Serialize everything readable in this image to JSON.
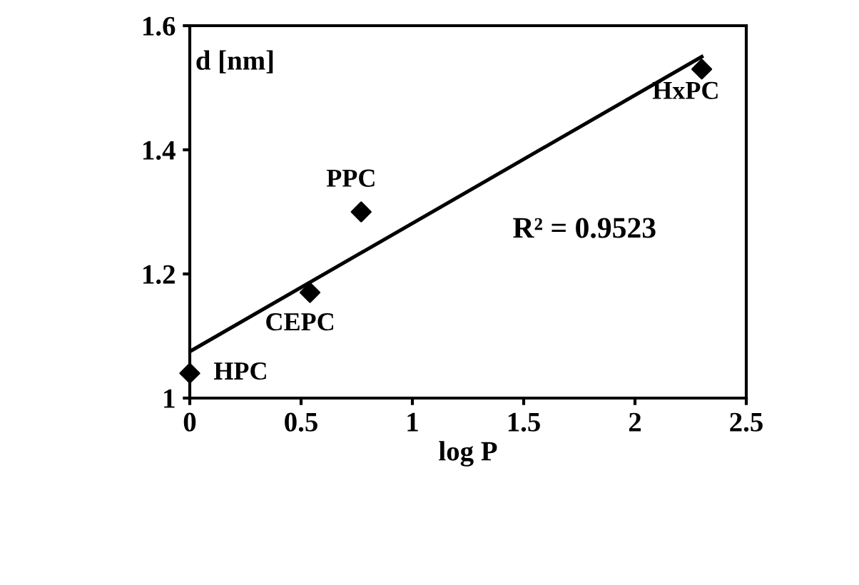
{
  "chart_data": {
    "type": "scatter",
    "xlabel": "log P",
    "ylabel": "d [nm]",
    "xlim": [
      0,
      2.5
    ],
    "xticks": [
      0,
      0.5,
      1,
      1.5,
      2,
      2.5
    ],
    "ylim": [
      1,
      1.6
    ],
    "yticks": [
      1,
      1.2,
      1.4,
      1.6
    ],
    "series": [
      {
        "x": [
          0,
          0.54,
          0.77,
          2.3
        ],
        "values": [
          1.04,
          1.17,
          1.3,
          1.53
        ],
        "color": "#000000",
        "marker": "diamond"
      },
      {
        "type": "line",
        "x": [
          0,
          2.3
        ],
        "values": [
          1.075,
          1.55
        ],
        "color": "#000000",
        "line_style": "solid"
      }
    ],
    "annotations": [
      {
        "text": "HPC",
        "x": 0,
        "y": 1.04
      },
      {
        "text": "CEPC",
        "x": 0.54,
        "y": 1.17
      },
      {
        "text": "PPC",
        "x": 0.77,
        "y": 1.3
      },
      {
        "text": "HxPC",
        "x": 2.3,
        "y": 1.53
      },
      "R² = 0.9523"
    ],
    "grid": false,
    "legend": false
  }
}
